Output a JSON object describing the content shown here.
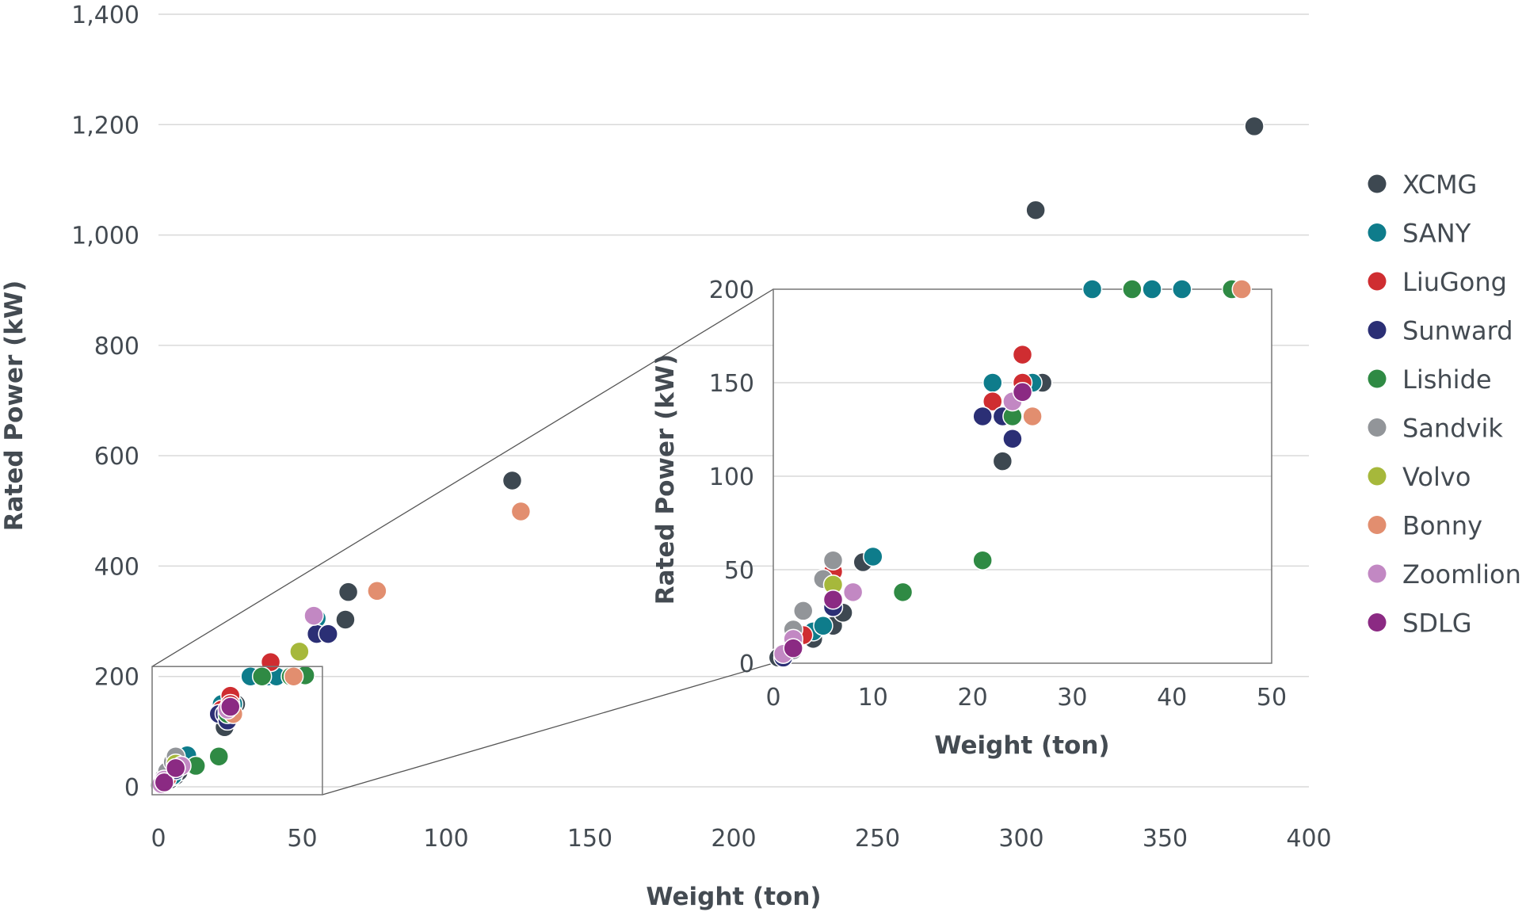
{
  "chart_data": [
    {
      "type": "scatter",
      "name": "main",
      "title": "",
      "xlabel": "Weight (ton)",
      "ylabel": "Rated Power (kW)",
      "xlim": [
        0,
        400
      ],
      "ylim": [
        0,
        1400
      ],
      "xticks": [
        0,
        50,
        100,
        150,
        200,
        250,
        300,
        350,
        400
      ],
      "yticks": [
        0,
        200,
        400,
        600,
        800,
        1000,
        1200,
        1400
      ],
      "xtick_labels": [
        "0",
        "50",
        "100",
        "150",
        "200",
        "250",
        "300",
        "350",
        "400"
      ],
      "ytick_labels": [
        "0",
        "200",
        "400",
        "600",
        "800",
        "1,000",
        "1,200",
        "1,400"
      ],
      "grid": "horizontal",
      "legend_position": "right",
      "series": [
        {
          "name": "XCMG",
          "color": "#3d4851",
          "points": [
            [
              0.5,
              3
            ],
            [
              2,
              7
            ],
            [
              4,
              13
            ],
            [
              6,
              20
            ],
            [
              7,
              27
            ],
            [
              9,
              54
            ],
            [
              23,
              108
            ],
            [
              27,
              150
            ],
            [
              66,
              353
            ],
            [
              65,
              303
            ],
            [
              123,
              555
            ],
            [
              305,
              1045
            ],
            [
              381,
              1197
            ]
          ]
        },
        {
          "name": "SANY",
          "color": "#0e7c8b",
          "points": [
            [
              4,
              17
            ],
            [
              5,
              20
            ],
            [
              10,
              57
            ],
            [
              22,
              150
            ],
            [
              25,
              150
            ],
            [
              26,
              150
            ],
            [
              32,
              200
            ],
            [
              38,
              200
            ],
            [
              41,
              200
            ],
            [
              55,
              305
            ]
          ]
        },
        {
          "name": "LiuGong",
          "color": "#cf2d31",
          "points": [
            [
              3,
              15
            ],
            [
              6,
              49
            ],
            [
              22,
              140
            ],
            [
              25,
              165
            ],
            [
              25,
              150
            ],
            [
              39,
              226
            ]
          ]
        },
        {
          "name": "Sunward",
          "color": "#2b2f75",
          "points": [
            [
              1,
              3
            ],
            [
              2,
              10
            ],
            [
              6,
              30
            ],
            [
              21,
              132
            ],
            [
              23,
              132
            ],
            [
              24,
              120
            ],
            [
              55,
              277
            ],
            [
              59,
              277
            ]
          ]
        },
        {
          "name": "Lishide",
          "color": "#2f8a44",
          "points": [
            [
              13,
              38
            ],
            [
              21,
              55
            ],
            [
              24,
              132
            ],
            [
              36,
              200
            ],
            [
              46,
              200
            ],
            [
              51,
              202
            ]
          ]
        },
        {
          "name": "Sandvik",
          "color": "#929599",
          "points": [
            [
              2,
              18
            ],
            [
              3,
              28
            ],
            [
              5,
              45
            ],
            [
              6,
              55
            ]
          ]
        },
        {
          "name": "Volvo",
          "color": "#a6b83b",
          "points": [
            [
              6,
              42
            ],
            [
              49,
              245
            ]
          ]
        },
        {
          "name": "Bonny",
          "color": "#e28e6f",
          "points": [
            [
              26,
              132
            ],
            [
              47,
              200
            ],
            [
              76,
              355
            ],
            [
              126,
              499
            ]
          ]
        },
        {
          "name": "Zoomlion",
          "color": "#c288c3",
          "points": [
            [
              1,
              5
            ],
            [
              2,
              13
            ],
            [
              8,
              38
            ],
            [
              24,
              140
            ],
            [
              54,
              310
            ]
          ]
        },
        {
          "name": "SDLG",
          "color": "#8b2a83",
          "points": [
            [
              2,
              8
            ],
            [
              6,
              34
            ],
            [
              25,
              145
            ]
          ]
        }
      ],
      "zoom_box": {
        "x": [
          0,
          57
        ],
        "y": [
          0,
          218
        ]
      }
    },
    {
      "type": "scatter",
      "name": "inset",
      "title": "",
      "xlabel": "Weight (ton)",
      "ylabel": "Rated Power (kW)",
      "xlim": [
        0,
        50
      ],
      "ylim": [
        0,
        200
      ],
      "xticks": [
        0,
        10,
        20,
        30,
        40,
        50
      ],
      "yticks": [
        0,
        50,
        100,
        150,
        200
      ],
      "xtick_labels": [
        "0",
        "10",
        "20",
        "30",
        "40",
        "50"
      ],
      "ytick_labels": [
        "0",
        "50",
        "100",
        "150",
        "200"
      ],
      "grid": "horizontal"
    }
  ]
}
